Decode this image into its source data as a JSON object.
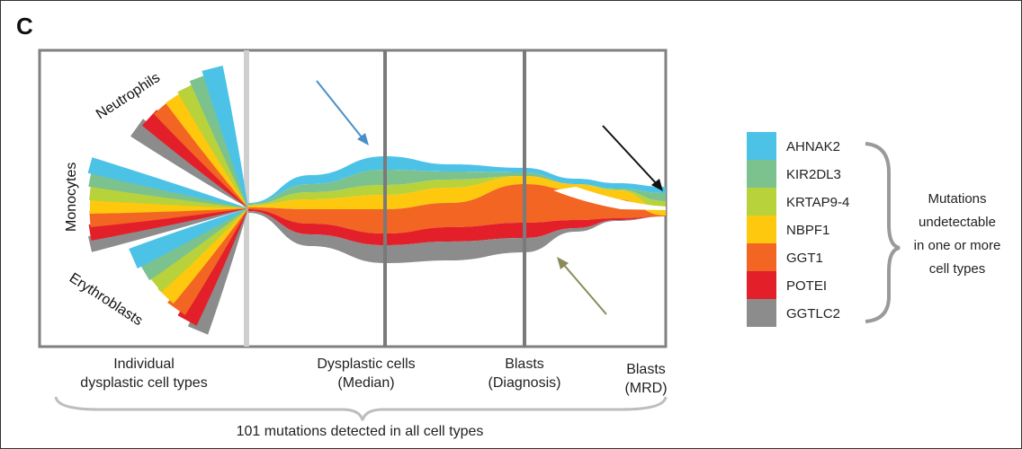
{
  "panel_label": "C",
  "cell_labels": {
    "neutrophils": "Neutrophils",
    "monocytes": "Monocytes",
    "erythroblasts": "Erythroblasts"
  },
  "x_labels": {
    "individual": [
      "Individual",
      "dysplastic cell types"
    ],
    "dysplastic": [
      "Dysplastic cells",
      "(Median)"
    ],
    "blasts_diagnosis": [
      "Blasts",
      "(Diagnosis)"
    ],
    "blasts_mrd": [
      "Blasts",
      "(MRD)"
    ]
  },
  "footer": "101 mutations detected in all cell types",
  "legend": [
    {
      "gene": "AHNAK2",
      "color": "#4cc3e6"
    },
    {
      "gene": "KIR2DL3",
      "color": "#7cc28e"
    },
    {
      "gene": "KRTAP9-4",
      "color": "#b8d23c"
    },
    {
      "gene": "NBPF1",
      "color": "#fdc80e"
    },
    {
      "gene": "GGT1",
      "color": "#f26522"
    },
    {
      "gene": "POTEI",
      "color": "#e3202a"
    },
    {
      "gene": "GGTLC2",
      "color": "#8c8c8c"
    }
  ],
  "brace_note": [
    "Mutations",
    "undetectable",
    "in one or more",
    "cell types"
  ],
  "arrow_colors": {
    "blue": "#4a90c8",
    "olive": "#8a8a5a",
    "black": "#111111"
  }
}
